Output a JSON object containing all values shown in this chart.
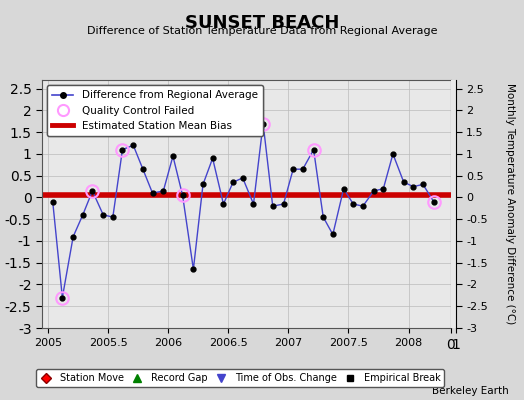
{
  "title": "SUNSET BEACH",
  "subtitle": "Difference of Station Temperature Data from Regional Average",
  "ylabel": "Monthly Temperature Anomaly Difference (°C)",
  "background_color": "#d8d8d8",
  "plot_background": "#e8e8e8",
  "bias_value": 0.05,
  "xlim": [
    2004.95,
    2008.35
  ],
  "ylim": [
    -3.0,
    2.7
  ],
  "yticks": [
    -3,
    -2.5,
    -2,
    -1.5,
    -1,
    -0.5,
    0,
    0.5,
    1,
    1.5,
    2,
    2.5
  ],
  "xticks": [
    2005,
    2005.5,
    2006,
    2006.5,
    2007,
    2007.5,
    2008
  ],
  "times": [
    2005.04,
    2005.12,
    2005.21,
    2005.29,
    2005.37,
    2005.46,
    2005.54,
    2005.62,
    2005.71,
    2005.79,
    2005.87,
    2005.96,
    2006.04,
    2006.12,
    2006.21,
    2006.29,
    2006.37,
    2006.46,
    2006.54,
    2006.62,
    2006.71,
    2006.79,
    2006.87,
    2006.96,
    2007.04,
    2007.12,
    2007.21,
    2007.29,
    2007.37,
    2007.46,
    2007.54,
    2007.62,
    2007.71,
    2007.79,
    2007.87,
    2007.96,
    2008.04,
    2008.12,
    2008.21
  ],
  "values": [
    -0.1,
    -2.3,
    -0.9,
    -0.4,
    0.15,
    -0.4,
    -0.45,
    1.1,
    1.2,
    0.65,
    0.1,
    0.15,
    0.95,
    0.05,
    -1.65,
    0.3,
    0.9,
    -0.15,
    0.35,
    0.45,
    -0.15,
    1.7,
    -0.2,
    -0.15,
    0.65,
    0.65,
    1.1,
    -0.45,
    -0.85,
    0.2,
    -0.15,
    -0.2,
    0.15,
    0.2,
    1.0,
    0.35,
    0.25,
    0.3,
    -0.1
  ],
  "qc_failed_indices": [
    1,
    4,
    7,
    13,
    21,
    26,
    38
  ],
  "line_color": "#4444cc",
  "marker_color": "#000000",
  "qc_color": "#ff99ff",
  "bias_color": "#cc0000",
  "grid_color": "#bbbbbb",
  "watermark": "Berkeley Earth"
}
